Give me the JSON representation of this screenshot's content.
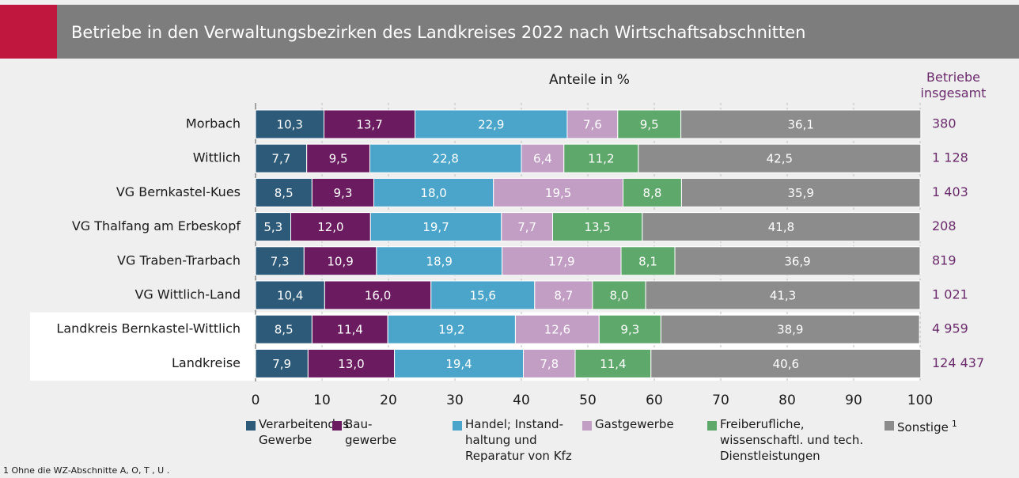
{
  "chart_data": {
    "type": "stacked-barh",
    "title": "Betriebe in den Verwaltungsbezirken des Landkreises 2022 nach Wirtschaftsabschnitten",
    "xlabel": "Anteile in %",
    "categories": [
      "Morbach",
      "Wittlich",
      "VG Bernkastel-Kues",
      "VG Thalfang am Erbeskopf",
      "VG Traben-Trarbach",
      "VG Wittlich-Land",
      "Landkreis Bernkastel-Wittlich",
      "Landkreise"
    ],
    "highlight_rows": [
      6,
      7
    ],
    "series": [
      {
        "name": "Verarbeitendes Gewerbe",
        "color": "#2d5a78",
        "values": [
          10.3,
          7.7,
          8.5,
          5.3,
          7.3,
          10.4,
          8.5,
          7.9
        ],
        "value_labels": [
          "10,3",
          "7,7",
          "8,5",
          "5,3",
          "7,3",
          "10,4",
          "8,5",
          "7,9"
        ]
      },
      {
        "name": "Bau-gewerbe",
        "color": "#6b1c60",
        "values": [
          13.7,
          9.5,
          9.3,
          12.0,
          10.9,
          16.0,
          11.4,
          13.0
        ],
        "value_labels": [
          "13,7",
          "9,5",
          "9,3",
          "12,0",
          "10,9",
          "16,0",
          "11,4",
          "13,0"
        ]
      },
      {
        "name": "Handel; Instand-haltung und Reparatur von Kfz",
        "color": "#4ba5ca",
        "values": [
          22.9,
          22.8,
          18.0,
          19.7,
          18.9,
          15.6,
          19.2,
          19.4
        ],
        "value_labels": [
          "22,9",
          "22,8",
          "18,0",
          "19,7",
          "18,9",
          "15,6",
          "19,2",
          "19,4"
        ]
      },
      {
        "name": "Gastgewerbe",
        "color": "#c29dc4",
        "values": [
          7.6,
          6.4,
          19.5,
          7.7,
          17.9,
          8.7,
          12.6,
          7.8
        ],
        "value_labels": [
          "7,6",
          "6,4",
          "19,5",
          "7,7",
          "17,9",
          "8,7",
          "12,6",
          "7,8"
        ]
      },
      {
        "name": "Freiberufliche, wissenschaftl. und tech. Dienstleistungen",
        "color": "#5fa86b",
        "values": [
          9.5,
          11.2,
          8.8,
          13.5,
          8.1,
          8.0,
          9.3,
          11.4
        ],
        "value_labels": [
          "9,5",
          "11,2",
          "8,8",
          "13,5",
          "8,1",
          "8,0",
          "9,3",
          "11,4"
        ]
      },
      {
        "name": "Sonstige",
        "color": "#8c8c8c",
        "values": [
          36.1,
          42.5,
          35.9,
          41.8,
          36.9,
          41.3,
          38.9,
          40.6
        ],
        "value_labels": [
          "36,1",
          "42,5",
          "35,9",
          "41,8",
          "36,9",
          "41,3",
          "38,9",
          "40,6"
        ],
        "marker": "1"
      }
    ],
    "totals": {
      "title": "Betriebe insgesamt",
      "color": "#6b2a6b",
      "values": [
        380,
        1128,
        1403,
        208,
        819,
        1021,
        4959,
        124437
      ],
      "value_labels": [
        "380",
        "1 128",
        "1 403",
        "208",
        "819",
        "1 021",
        "4 959",
        "124 437"
      ]
    },
    "xlim": [
      0,
      100
    ],
    "xticks": [
      0,
      10,
      20,
      30,
      40,
      50,
      60,
      70,
      80,
      90,
      100
    ],
    "grid": true,
    "footnote": "1 Ohne die WZ-Abschnitte A, O, T , U ."
  }
}
